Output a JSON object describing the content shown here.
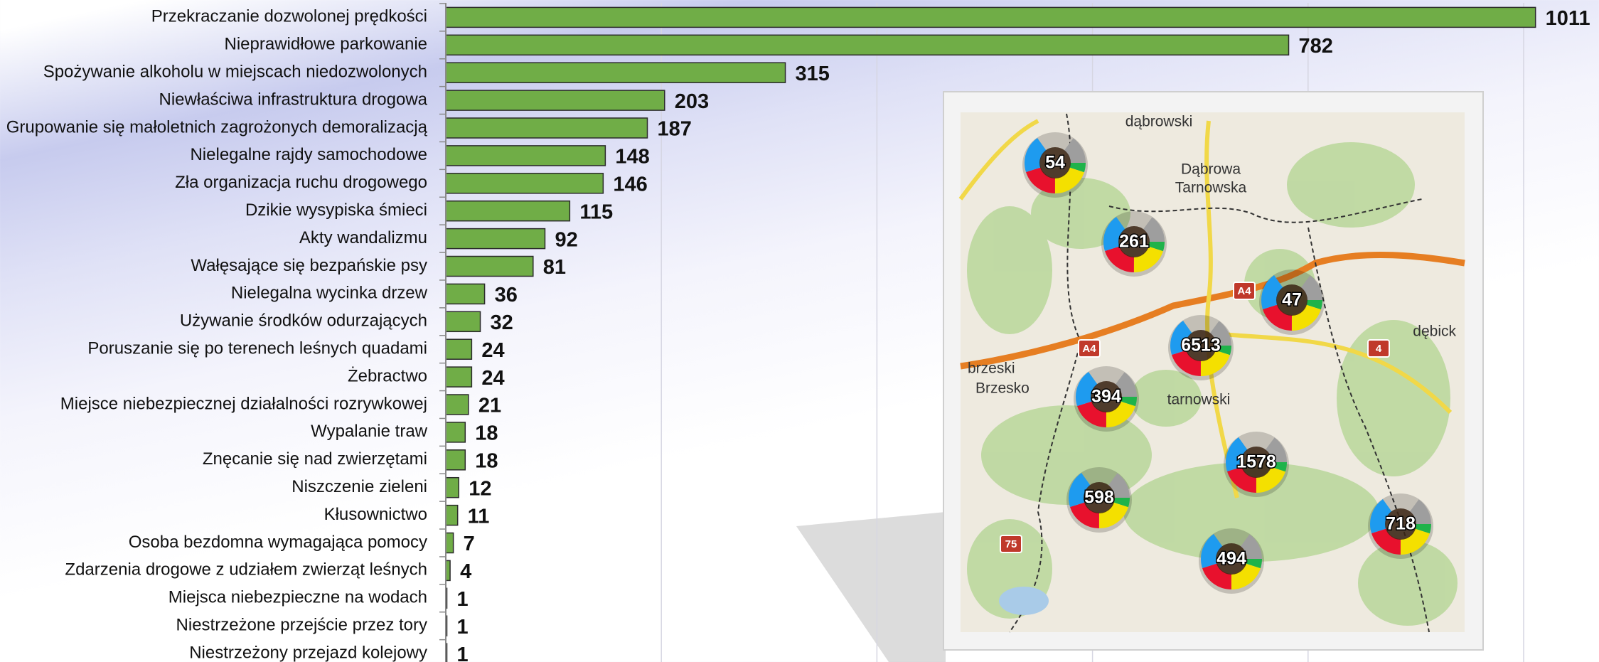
{
  "chart_data": {
    "type": "barh",
    "categories": [
      "Przekraczanie dozwolonej prędkości",
      "Nieprawidłowe parkowanie",
      "Spożywanie alkoholu w miejscach niedozwolonych",
      "Niewłaściwa infrastruktura drogowa",
      "Grupowanie się małoletnich zagrożonych demoralizacją",
      "Nielegalne rajdy samochodowe",
      "Zła organizacja ruchu drogowego",
      "Dzikie wysypiska śmieci",
      "Akty wandalizmu",
      "Wałęsające się bezpańskie psy",
      "Nielegalna wycinka drzew",
      "Używanie środków odurzających",
      "Poruszanie się po terenech leśnych quadami",
      "Żebractwo",
      "Miejsce niebezpiecznej działalności rozrywkowej",
      "Wypalanie traw",
      "Znęcanie się nad zwierzętami",
      "Niszczenie zieleni",
      "Kłusownictwo",
      "Osoba bezdomna wymagająca pomocy",
      "Zdarzenia drogowe z udziałem zwierząt leśnych",
      "Miejsca niebezpieczne na wodach",
      "Niestrzeżone przejście przez tory",
      "Niestrzeżony przejazd kolejowy"
    ],
    "values": [
      1011,
      782,
      315,
      203,
      187,
      148,
      146,
      115,
      92,
      81,
      36,
      32,
      24,
      24,
      21,
      18,
      18,
      12,
      11,
      7,
      4,
      1,
      1,
      1
    ],
    "color": "#70ad47",
    "xlim": [
      0,
      1000
    ],
    "xticks": [
      0,
      200,
      400,
      600,
      800,
      1000
    ],
    "grid": true
  },
  "map": {
    "places": [
      "dąbrowski",
      "Dąbrowa",
      "Tarnowska",
      "brzeski",
      "Brzesko",
      "tarnowski",
      "dębick",
      "A4",
      "A4",
      "4",
      "75"
    ],
    "clusters": [
      "54",
      "261",
      "47",
      "6513",
      "394",
      "1578",
      "598",
      "718",
      "494"
    ]
  }
}
